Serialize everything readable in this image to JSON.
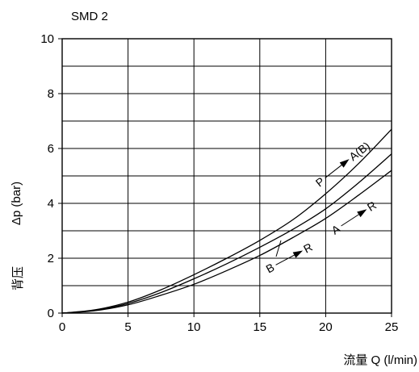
{
  "chart_data": {
    "type": "line",
    "title": "SMD 2",
    "xlabel": "流量 Q (l/min)",
    "ylabel": "Δp (bar)",
    "ylabel_cn": "背压",
    "xlim": [
      0,
      25
    ],
    "ylim": [
      0,
      10
    ],
    "xticks": [
      0,
      5,
      10,
      15,
      20,
      25
    ],
    "yticks": [
      0,
      2,
      4,
      6,
      8,
      10
    ],
    "grid": true,
    "series": [
      {
        "name": "P → A(B)",
        "from": "P",
        "to": "A(B)",
        "x": [
          0,
          2.5,
          5,
          7.5,
          10,
          12.5,
          15,
          17.5,
          20,
          22.5,
          25
        ],
        "y": [
          0,
          0.12,
          0.4,
          0.85,
          1.4,
          2.0,
          2.65,
          3.4,
          4.35,
          5.45,
          6.7
        ]
      },
      {
        "name": "A → R",
        "from": "A",
        "to": "R",
        "x": [
          0,
          2.5,
          5,
          7.5,
          10,
          12.5,
          15,
          17.5,
          20,
          22.5,
          25
        ],
        "y": [
          0,
          0.1,
          0.35,
          0.75,
          1.25,
          1.8,
          2.4,
          3.05,
          3.8,
          4.75,
          5.8
        ]
      },
      {
        "name": "B → R",
        "from": "B",
        "to": "R",
        "x": [
          0,
          2.5,
          5,
          7.5,
          10,
          12.5,
          15,
          17.5,
          20,
          22.5,
          25
        ],
        "y": [
          0,
          0.09,
          0.3,
          0.65,
          1.05,
          1.55,
          2.1,
          2.75,
          3.45,
          4.3,
          5.2
        ]
      }
    ]
  }
}
